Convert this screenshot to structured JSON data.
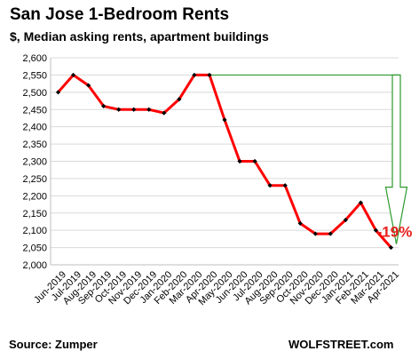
{
  "chart_data": {
    "type": "line",
    "title": "San Jose 1-Bedroom Rents",
    "subtitle": "$, Median asking rents, apartment buildings",
    "xlabel": "",
    "ylabel": "",
    "categories": [
      "Jun-2019",
      "Jul-2019",
      "Aug-2019",
      "Sep-2019",
      "Oct-2019",
      "Nov-2019",
      "Dec-2019",
      "Jan-2020",
      "Feb-2020",
      "Mar-2020",
      "Apr-2020",
      "May-2020",
      "Jun-2020",
      "Jul-2020",
      "Aug-2020",
      "Sep-2020",
      "Oct-2020",
      "Nov-2020",
      "Dec-2020",
      "Jan-2021",
      "Feb-2021",
      "Mar-2021",
      "Apr-2021"
    ],
    "series": [
      {
        "values": [
          2500,
          2550,
          2520,
          2460,
          2450,
          2450,
          2450,
          2440,
          2480,
          2550,
          2550,
          2420,
          2300,
          2300,
          2230,
          2230,
          2120,
          2090,
          2090,
          2130,
          2180,
          2100,
          2050
        ]
      }
    ],
    "ylim": [
      2000,
      2600
    ],
    "yticks": [
      2000,
      2050,
      2100,
      2150,
      2200,
      2250,
      2300,
      2350,
      2400,
      2450,
      2500,
      2550,
      2600
    ],
    "ytick_labels": [
      "2,000",
      "2,050",
      "2,100",
      "2,150",
      "2,200",
      "2,250",
      "2,300",
      "2,350",
      "2,400",
      "2,450",
      "2,500",
      "2,550",
      "2,600"
    ],
    "grid": "horizontal",
    "annotation": {
      "text": "-19%",
      "color": "#e8201d",
      "from_value": 2550,
      "to_value": 2050
    },
    "line_color": "#ff0000",
    "marker_color": "#000000",
    "arrow_color": "#2e9a2e",
    "grid_color": "#d9d9d9"
  },
  "footer": {
    "source": "Source: Zumper",
    "brand": "WOLFSTREET.com"
  }
}
